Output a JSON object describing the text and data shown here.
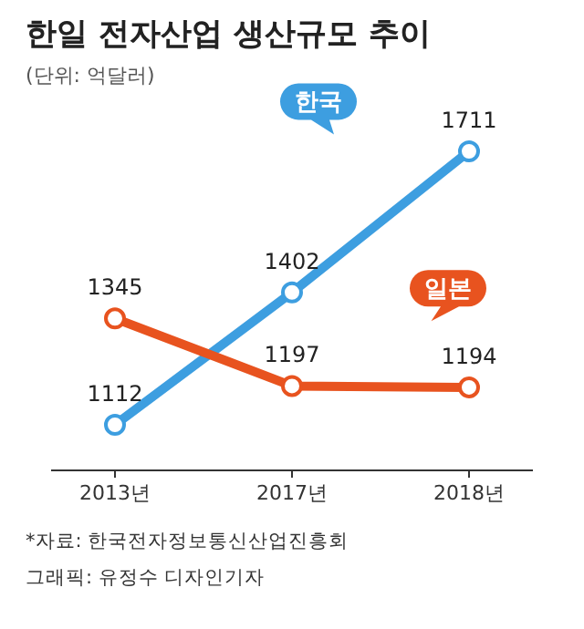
{
  "chart_data": {
    "type": "line",
    "title": "한일 전자산업 생산규모 추이",
    "subtitle": "(단위: 억달러)",
    "categories": [
      "2013년",
      "2017년",
      "2018년"
    ],
    "series": [
      {
        "name": "한국",
        "color": "#3d9ee0",
        "values": [
          1112,
          1402,
          1711
        ]
      },
      {
        "name": "일본",
        "color": "#e8531f",
        "values": [
          1345,
          1197,
          1194
        ]
      }
    ],
    "data_labels": true,
    "marker": "circle",
    "grid": false,
    "annotations": [
      "*자료: 한국전자정보통신산업진흥회",
      "그래픽: 유정수 디자인기자"
    ]
  }
}
